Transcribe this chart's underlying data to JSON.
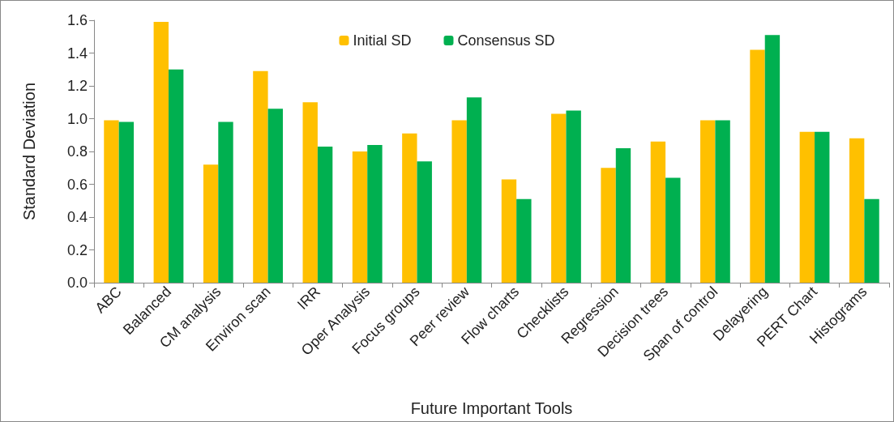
{
  "chart_data": {
    "type": "bar",
    "xlabel": "Future Important Tools",
    "ylabel": "Standard Deviation",
    "categories": [
      "ABC",
      "Balanced",
      "CM analysis",
      "Environ scan",
      "IRR",
      "Oper Analysis",
      "Focus groups",
      "Peer review",
      "Flow charts",
      "Checklists",
      "Regression",
      "Decision trees",
      "Span of control",
      "Delayering",
      "PERT Chart",
      "Histograms"
    ],
    "series": [
      {
        "name": "Initial SD",
        "color": "#ffc000",
        "values": [
          0.99,
          1.59,
          0.72,
          1.29,
          1.1,
          0.8,
          0.91,
          0.99,
          0.63,
          1.03,
          0.7,
          0.86,
          0.99,
          1.42,
          0.92,
          0.88
        ]
      },
      {
        "name": "Consensus SD",
        "color": "#00b050",
        "values": [
          0.98,
          1.3,
          0.98,
          1.06,
          0.83,
          0.84,
          0.74,
          1.13,
          0.51,
          1.05,
          0.82,
          0.64,
          0.99,
          1.51,
          0.92,
          0.51
        ]
      }
    ],
    "ylim": [
      0,
      1.6
    ],
    "yticks": [
      {
        "value": 0,
        "label": "0.0"
      },
      {
        "value": 0.2,
        "label": "0.2"
      },
      {
        "value": 0.4,
        "label": "0.4"
      },
      {
        "value": 0.6,
        "label": "0.6"
      },
      {
        "value": 0.8,
        "label": "0.8"
      },
      {
        "value": 1,
        "label": "1.0"
      },
      {
        "value": 1.2,
        "label": "1.2"
      },
      {
        "value": 1.4,
        "label": "1.4"
      },
      {
        "value": 1.6,
        "label": "1.6"
      }
    ],
    "grid": false,
    "legend": "top"
  }
}
